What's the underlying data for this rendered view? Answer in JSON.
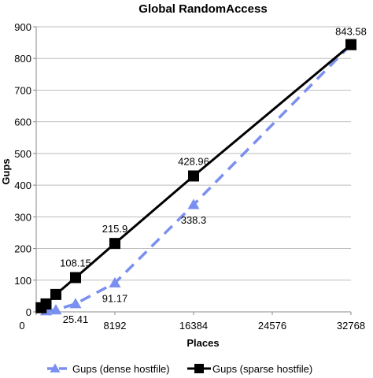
{
  "chart_data": {
    "type": "line",
    "title": "Global RandomAccess",
    "xlabel": "Places",
    "ylabel": "Gups",
    "xlim": [
      0,
      32768
    ],
    "ylim": [
      0,
      900
    ],
    "xticks": [
      0,
      8192,
      16384,
      24576,
      32768
    ],
    "yticks": [
      0,
      100,
      200,
      300,
      400,
      500,
      600,
      700,
      800,
      900
    ],
    "grid": "horizontal",
    "legend": "bottom",
    "series": [
      {
        "name": "Gups (dense hostfile)",
        "color": "#7b8ff0",
        "style": "dashed",
        "marker": "triangle",
        "x": [
          1024,
          2048,
          4096,
          8192,
          16384,
          32768
        ],
        "y": [
          3,
          6,
          25.41,
          91.17,
          338.3,
          843.58
        ],
        "labels": [
          "",
          "",
          "25.41",
          "91.17",
          "338.3",
          ""
        ]
      },
      {
        "name": "Gups (sparse hostfile)",
        "color": "#000000",
        "style": "solid",
        "marker": "square",
        "x": [
          512,
          1024,
          2048,
          4096,
          8192,
          16384,
          32768
        ],
        "y": [
          13,
          25,
          55,
          108.15,
          215.9,
          428.96,
          843.58
        ],
        "labels": [
          "",
          "",
          "",
          "108.15",
          "215.9",
          "428.96",
          "843.58"
        ]
      }
    ]
  }
}
